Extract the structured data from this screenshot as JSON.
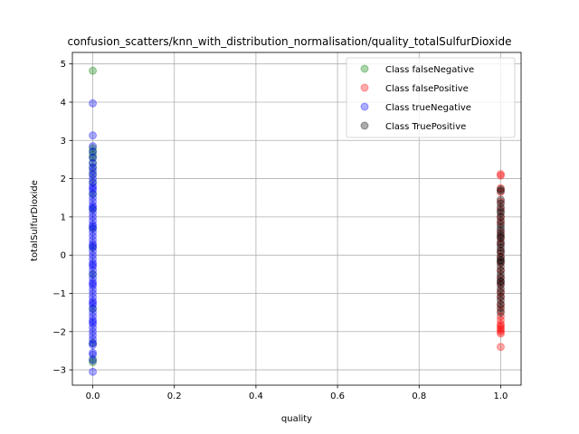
{
  "chart_data": {
    "type": "scatter",
    "title": "confusion_scatters/knn_with_distribution_normalisation/quality_totalSulfurDioxide",
    "xlabel": "quality",
    "ylabel": "totalSulfurDioxide",
    "xlim": [
      -0.05,
      1.05
    ],
    "ylim": [
      -3.4,
      5.3
    ],
    "xticks": [
      0.0,
      0.2,
      0.4,
      0.6,
      0.8,
      1.0
    ],
    "xtick_labels": [
      "0.0",
      "0.2",
      "0.4",
      "0.6",
      "0.8",
      "1.0"
    ],
    "yticks": [
      -3,
      -2,
      -1,
      0,
      1,
      2,
      3,
      4,
      5
    ],
    "ytick_labels": [
      "−3",
      "−2",
      "−1",
      "0",
      "1",
      "2",
      "3",
      "4",
      "5"
    ],
    "grid": true,
    "legend_position": "top-right",
    "series": [
      {
        "name": "Class falseNegative",
        "color": "#008000",
        "x": [
          0,
          0,
          0,
          0,
          0,
          0,
          0,
          0,
          0,
          0,
          0,
          0,
          0,
          0,
          0,
          0,
          0,
          0
        ],
        "y": [
          4.82,
          2.8,
          2.72,
          2.62,
          2.55,
          2.42,
          2.28,
          2.12,
          1.9,
          1.6,
          1.2,
          0.7,
          0.2,
          -0.5,
          -1.4,
          -2.3,
          -2.72,
          -2.8
        ]
      },
      {
        "name": "Class falsePositive",
        "color": "#ff0000",
        "x": [
          1,
          1,
          1,
          1,
          1,
          1,
          1,
          1,
          1,
          1,
          1,
          1,
          1,
          1,
          1,
          1,
          1,
          1,
          1,
          1,
          1,
          1,
          1,
          1,
          1,
          1,
          1,
          1,
          1,
          1
        ],
        "y": [
          2.12,
          2.08,
          1.75,
          1.65,
          1.4,
          1.2,
          1.0,
          0.85,
          0.6,
          0.45,
          0.3,
          0.1,
          -0.05,
          -0.2,
          -0.4,
          -0.6,
          -0.75,
          -0.95,
          -1.1,
          -1.3,
          -1.45,
          -1.6,
          -1.7,
          -1.8,
          -1.85,
          -1.9,
          -1.95,
          -2.0,
          -2.05,
          -2.4
        ]
      },
      {
        "name": "Class trueNegative",
        "color": "#0000ff",
        "x": [
          0,
          0,
          0,
          0,
          0,
          0,
          0,
          0,
          0,
          0,
          0,
          0,
          0,
          0,
          0,
          0,
          0,
          0,
          0,
          0,
          0,
          0,
          0,
          0,
          0,
          0,
          0,
          0,
          0,
          0,
          0,
          0,
          0,
          0,
          0,
          0,
          0,
          0,
          0,
          0,
          0,
          0,
          0,
          0,
          0,
          0,
          0,
          0,
          0,
          0,
          0,
          0,
          0,
          0,
          0,
          0,
          0,
          0,
          0,
          0,
          0,
          0,
          0,
          0,
          0,
          0
        ],
        "y": [
          3.97,
          3.13,
          2.85,
          2.7,
          2.55,
          2.4,
          2.3,
          2.2,
          2.1,
          2.0,
          1.9,
          1.8,
          1.7,
          1.6,
          1.5,
          1.4,
          1.3,
          1.2,
          1.1,
          1.0,
          0.9,
          0.8,
          0.7,
          0.6,
          0.5,
          0.4,
          0.3,
          0.2,
          0.1,
          0.0,
          -0.1,
          -0.2,
          -0.3,
          -0.4,
          -0.5,
          -0.6,
          -0.7,
          -0.8,
          -0.9,
          -1.0,
          -1.1,
          -1.2,
          -1.3,
          -1.4,
          -1.5,
          -1.6,
          -1.7,
          -1.8,
          -1.9,
          -2.0,
          -2.1,
          -2.2,
          -2.3,
          -2.35,
          -2.55,
          -2.6,
          -2.75,
          -3.05,
          1.75,
          1.25,
          0.75,
          0.25,
          -0.25,
          -0.75,
          -1.25,
          -1.75
        ]
      },
      {
        "name": "Class TruePositive",
        "color": "#000000",
        "x": [
          1,
          1,
          1,
          1,
          1,
          1,
          1,
          1,
          1,
          1,
          1,
          1,
          1,
          1,
          1,
          1,
          1,
          1,
          1,
          1,
          1,
          1,
          1,
          1,
          1,
          1,
          1,
          1,
          1,
          1,
          1,
          1,
          1,
          1,
          1,
          1,
          1,
          1
        ],
        "y": [
          1.72,
          1.68,
          1.45,
          1.35,
          1.25,
          1.1,
          1.0,
          0.9,
          0.8,
          0.72,
          0.65,
          0.55,
          0.45,
          0.35,
          0.28,
          0.2,
          0.12,
          0.05,
          -0.05,
          -0.12,
          -0.2,
          -0.3,
          -0.4,
          -0.5,
          -0.58,
          -0.68,
          -0.78,
          -0.88,
          -0.98,
          -1.08,
          -1.18,
          -1.28,
          -1.38,
          -1.5,
          -0.15,
          0.5,
          1.15,
          -0.7
        ]
      }
    ]
  }
}
